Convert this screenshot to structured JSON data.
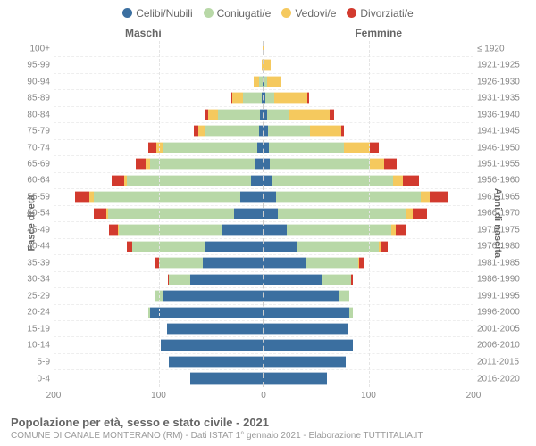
{
  "legend": {
    "items": [
      {
        "label": "Celibi/Nubili",
        "color": "#3b6fa0"
      },
      {
        "label": "Coniugati/e",
        "color": "#b8d8a7"
      },
      {
        "label": "Vedovi/e",
        "color": "#f5c95e"
      },
      {
        "label": "Divorziati/e",
        "color": "#d23a2e"
      }
    ]
  },
  "columns": {
    "male": "Maschi",
    "female": "Femmine"
  },
  "axis_labels": {
    "left": "Fasce di età",
    "right": "Anni di nascita"
  },
  "x_axis": {
    "max": 200,
    "ticks_left": [
      200,
      100,
      0
    ],
    "ticks_right": [
      100,
      200
    ]
  },
  "colors": {
    "single": "#3b6fa0",
    "married": "#b8d8a7",
    "widowed": "#f5c95e",
    "divorced": "#d23a2e",
    "grid": "#e5e5e5",
    "center": "#cccccc"
  },
  "pyramid": {
    "rows": [
      {
        "age": "100+",
        "birth": "≤ 1920",
        "m": {
          "s": 0,
          "c": 0,
          "w": 1,
          "d": 0
        },
        "f": {
          "s": 0,
          "c": 0,
          "w": 1,
          "d": 0
        }
      },
      {
        "age": "95-99",
        "birth": "1921-1925",
        "m": {
          "s": 0,
          "c": 0,
          "w": 2,
          "d": 0
        },
        "f": {
          "s": 1,
          "c": 0,
          "w": 6,
          "d": 0
        }
      },
      {
        "age": "90-94",
        "birth": "1926-1930",
        "m": {
          "s": 1,
          "c": 3,
          "w": 5,
          "d": 0
        },
        "f": {
          "s": 1,
          "c": 2,
          "w": 14,
          "d": 0
        }
      },
      {
        "age": "85-89",
        "birth": "1931-1935",
        "m": {
          "s": 2,
          "c": 18,
          "w": 10,
          "d": 1
        },
        "f": {
          "s": 2,
          "c": 8,
          "w": 32,
          "d": 1
        }
      },
      {
        "age": "80-84",
        "birth": "1936-1940",
        "m": {
          "s": 3,
          "c": 40,
          "w": 10,
          "d": 3
        },
        "f": {
          "s": 3,
          "c": 22,
          "w": 38,
          "d": 4
        }
      },
      {
        "age": "75-79",
        "birth": "1941-1945",
        "m": {
          "s": 4,
          "c": 52,
          "w": 6,
          "d": 4
        },
        "f": {
          "s": 4,
          "c": 40,
          "w": 30,
          "d": 3
        }
      },
      {
        "age": "70-74",
        "birth": "1946-1950",
        "m": {
          "s": 6,
          "c": 90,
          "w": 6,
          "d": 8
        },
        "f": {
          "s": 5,
          "c": 72,
          "w": 24,
          "d": 9
        }
      },
      {
        "age": "65-69",
        "birth": "1951-1955",
        "m": {
          "s": 8,
          "c": 100,
          "w": 4,
          "d": 10
        },
        "f": {
          "s": 6,
          "c": 95,
          "w": 14,
          "d": 12
        }
      },
      {
        "age": "60-64",
        "birth": "1956-1960",
        "m": {
          "s": 12,
          "c": 118,
          "w": 3,
          "d": 12
        },
        "f": {
          "s": 8,
          "c": 115,
          "w": 10,
          "d": 15
        }
      },
      {
        "age": "55-59",
        "birth": "1961-1965",
        "m": {
          "s": 22,
          "c": 140,
          "w": 4,
          "d": 14
        },
        "f": {
          "s": 12,
          "c": 138,
          "w": 8,
          "d": 18
        }
      },
      {
        "age": "50-54",
        "birth": "1966-1970",
        "m": {
          "s": 28,
          "c": 120,
          "w": 2,
          "d": 12
        },
        "f": {
          "s": 14,
          "c": 122,
          "w": 6,
          "d": 14
        }
      },
      {
        "age": "45-49",
        "birth": "1971-1975",
        "m": {
          "s": 40,
          "c": 98,
          "w": 1,
          "d": 8
        },
        "f": {
          "s": 22,
          "c": 100,
          "w": 4,
          "d": 10
        }
      },
      {
        "age": "40-44",
        "birth": "1976-1980",
        "m": {
          "s": 55,
          "c": 70,
          "w": 0,
          "d": 5
        },
        "f": {
          "s": 32,
          "c": 78,
          "w": 2,
          "d": 6
        }
      },
      {
        "age": "35-39",
        "birth": "1981-1985",
        "m": {
          "s": 58,
          "c": 42,
          "w": 0,
          "d": 3
        },
        "f": {
          "s": 40,
          "c": 50,
          "w": 1,
          "d": 4
        }
      },
      {
        "age": "30-34",
        "birth": "1986-1990",
        "m": {
          "s": 70,
          "c": 20,
          "w": 0,
          "d": 1
        },
        "f": {
          "s": 55,
          "c": 28,
          "w": 0,
          "d": 2
        }
      },
      {
        "age": "25-29",
        "birth": "1991-1995",
        "m": {
          "s": 95,
          "c": 8,
          "w": 0,
          "d": 0
        },
        "f": {
          "s": 72,
          "c": 10,
          "w": 0,
          "d": 0
        }
      },
      {
        "age": "20-24",
        "birth": "1996-2000",
        "m": {
          "s": 108,
          "c": 2,
          "w": 0,
          "d": 0
        },
        "f": {
          "s": 82,
          "c": 3,
          "w": 0,
          "d": 0
        }
      },
      {
        "age": "15-19",
        "birth": "2001-2005",
        "m": {
          "s": 92,
          "c": 0,
          "w": 0,
          "d": 0
        },
        "f": {
          "s": 80,
          "c": 0,
          "w": 0,
          "d": 0
        }
      },
      {
        "age": "10-14",
        "birth": "2006-2010",
        "m": {
          "s": 98,
          "c": 0,
          "w": 0,
          "d": 0
        },
        "f": {
          "s": 85,
          "c": 0,
          "w": 0,
          "d": 0
        }
      },
      {
        "age": "5-9",
        "birth": "2011-2015",
        "m": {
          "s": 90,
          "c": 0,
          "w": 0,
          "d": 0
        },
        "f": {
          "s": 78,
          "c": 0,
          "w": 0,
          "d": 0
        }
      },
      {
        "age": "0-4",
        "birth": "2016-2020",
        "m": {
          "s": 70,
          "c": 0,
          "w": 0,
          "d": 0
        },
        "f": {
          "s": 60,
          "c": 0,
          "w": 0,
          "d": 0
        }
      }
    ]
  },
  "footer": {
    "title": "Popolazione per età, sesso e stato civile - 2021",
    "subtitle": "COMUNE DI CANALE MONTERANO (RM) - Dati ISTAT 1° gennaio 2021 - Elaborazione TUTTITALIA.IT"
  }
}
